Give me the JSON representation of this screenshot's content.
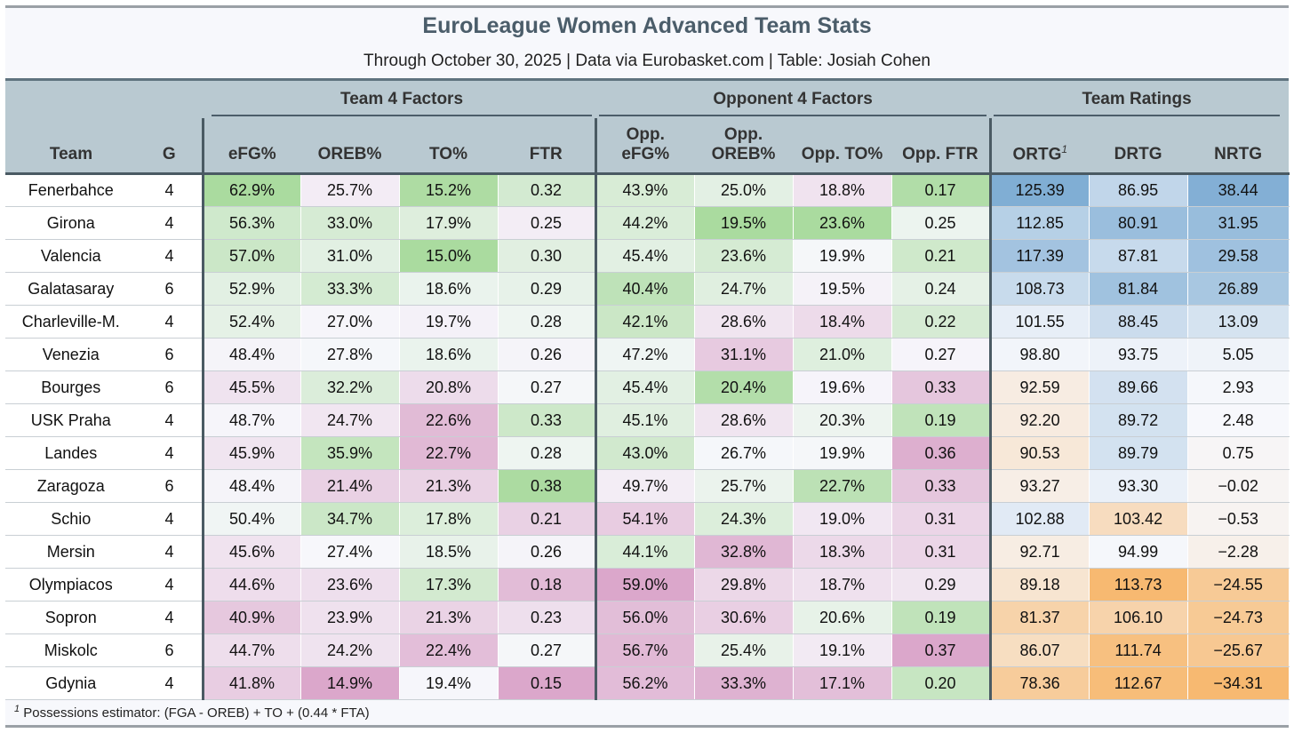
{
  "title": "EuroLeague Women Advanced Team Stats",
  "subtitle": "Through October 30, 2025 | Data via Eurobasket.com | Table: Josiah Cohen",
  "groups": {
    "team4": "Team 4 Factors",
    "opp4": "Opponent 4 Factors",
    "ratings": "Team Ratings"
  },
  "columns": {
    "team": "Team",
    "g": "G",
    "efg": "eFG%",
    "oreb": "OREB%",
    "to": "TO%",
    "ftr": "FTR",
    "opp_efg_1": "Opp.",
    "opp_efg_2": "eFG%",
    "opp_oreb_1": "Opp.",
    "opp_oreb_2": "OREB%",
    "opp_to": "Opp. TO%",
    "opp_ftr": "Opp. FTR",
    "ortg": "ORTG",
    "ortg_note": "1",
    "drtg": "DRTG",
    "nrtg": "NRTG"
  },
  "rows": [
    {
      "team": "Fenerbahce",
      "g": "4",
      "efg": "62.9%",
      "oreb": "25.7%",
      "to": "15.2%",
      "ftr": "0.32",
      "opp_efg": "43.9%",
      "opp_oreb": "25.0%",
      "opp_to": "18.8%",
      "opp_ftr": "0.17",
      "ortg": "125.39",
      "drtg": "86.95",
      "nrtg": "38.44"
    },
    {
      "team": "Girona",
      "g": "4",
      "efg": "56.3%",
      "oreb": "33.0%",
      "to": "17.9%",
      "ftr": "0.25",
      "opp_efg": "44.2%",
      "opp_oreb": "19.5%",
      "opp_to": "23.6%",
      "opp_ftr": "0.25",
      "ortg": "112.85",
      "drtg": "80.91",
      "nrtg": "31.95"
    },
    {
      "team": "Valencia",
      "g": "4",
      "efg": "57.0%",
      "oreb": "31.0%",
      "to": "15.0%",
      "ftr": "0.30",
      "opp_efg": "45.4%",
      "opp_oreb": "23.6%",
      "opp_to": "19.9%",
      "opp_ftr": "0.21",
      "ortg": "117.39",
      "drtg": "87.81",
      "nrtg": "29.58"
    },
    {
      "team": "Galatasaray",
      "g": "6",
      "efg": "52.9%",
      "oreb": "33.3%",
      "to": "18.6%",
      "ftr": "0.29",
      "opp_efg": "40.4%",
      "opp_oreb": "24.7%",
      "opp_to": "19.5%",
      "opp_ftr": "0.24",
      "ortg": "108.73",
      "drtg": "81.84",
      "nrtg": "26.89"
    },
    {
      "team": "Charleville-M.",
      "g": "4",
      "efg": "52.4%",
      "oreb": "27.0%",
      "to": "19.7%",
      "ftr": "0.28",
      "opp_efg": "42.1%",
      "opp_oreb": "28.6%",
      "opp_to": "18.4%",
      "opp_ftr": "0.22",
      "ortg": "101.55",
      "drtg": "88.45",
      "nrtg": "13.09"
    },
    {
      "team": "Venezia",
      "g": "6",
      "efg": "48.4%",
      "oreb": "27.8%",
      "to": "18.6%",
      "ftr": "0.26",
      "opp_efg": "47.2%",
      "opp_oreb": "31.1%",
      "opp_to": "21.0%",
      "opp_ftr": "0.27",
      "ortg": "98.80",
      "drtg": "93.75",
      "nrtg": "5.05"
    },
    {
      "team": "Bourges",
      "g": "6",
      "efg": "45.5%",
      "oreb": "32.2%",
      "to": "20.8%",
      "ftr": "0.27",
      "opp_efg": "45.4%",
      "opp_oreb": "20.4%",
      "opp_to": "19.6%",
      "opp_ftr": "0.33",
      "ortg": "92.59",
      "drtg": "89.66",
      "nrtg": "2.93"
    },
    {
      "team": "USK Praha",
      "g": "4",
      "efg": "48.7%",
      "oreb": "24.7%",
      "to": "22.6%",
      "ftr": "0.33",
      "opp_efg": "45.1%",
      "opp_oreb": "28.6%",
      "opp_to": "20.3%",
      "opp_ftr": "0.19",
      "ortg": "92.20",
      "drtg": "89.72",
      "nrtg": "2.48"
    },
    {
      "team": "Landes",
      "g": "4",
      "efg": "45.9%",
      "oreb": "35.9%",
      "to": "22.7%",
      "ftr": "0.28",
      "opp_efg": "43.0%",
      "opp_oreb": "26.7%",
      "opp_to": "19.9%",
      "opp_ftr": "0.36",
      "ortg": "90.53",
      "drtg": "89.79",
      "nrtg": "0.75"
    },
    {
      "team": "Zaragoza",
      "g": "6",
      "efg": "48.4%",
      "oreb": "21.4%",
      "to": "21.3%",
      "ftr": "0.38",
      "opp_efg": "49.7%",
      "opp_oreb": "25.7%",
      "opp_to": "22.7%",
      "opp_ftr": "0.33",
      "ortg": "93.27",
      "drtg": "93.30",
      "nrtg": "−0.02"
    },
    {
      "team": "Schio",
      "g": "4",
      "efg": "50.4%",
      "oreb": "34.7%",
      "to": "17.8%",
      "ftr": "0.21",
      "opp_efg": "54.1%",
      "opp_oreb": "24.3%",
      "opp_to": "19.0%",
      "opp_ftr": "0.31",
      "ortg": "102.88",
      "drtg": "103.42",
      "nrtg": "−0.53"
    },
    {
      "team": "Mersin",
      "g": "4",
      "efg": "45.6%",
      "oreb": "27.4%",
      "to": "18.5%",
      "ftr": "0.26",
      "opp_efg": "44.1%",
      "opp_oreb": "32.8%",
      "opp_to": "18.3%",
      "opp_ftr": "0.31",
      "ortg": "92.71",
      "drtg": "94.99",
      "nrtg": "−2.28"
    },
    {
      "team": "Olympiacos",
      "g": "4",
      "efg": "44.6%",
      "oreb": "23.6%",
      "to": "17.3%",
      "ftr": "0.18",
      "opp_efg": "59.0%",
      "opp_oreb": "29.8%",
      "opp_to": "18.7%",
      "opp_ftr": "0.29",
      "ortg": "89.18",
      "drtg": "113.73",
      "nrtg": "−24.55"
    },
    {
      "team": "Sopron",
      "g": "4",
      "efg": "40.9%",
      "oreb": "23.9%",
      "to": "21.3%",
      "ftr": "0.23",
      "opp_efg": "56.0%",
      "opp_oreb": "30.6%",
      "opp_to": "20.6%",
      "opp_ftr": "0.19",
      "ortg": "81.37",
      "drtg": "106.10",
      "nrtg": "−24.73"
    },
    {
      "team": "Miskolc",
      "g": "6",
      "efg": "44.7%",
      "oreb": "24.2%",
      "to": "22.4%",
      "ftr": "0.27",
      "opp_efg": "56.7%",
      "opp_oreb": "25.4%",
      "opp_to": "19.1%",
      "opp_ftr": "0.37",
      "ortg": "86.07",
      "drtg": "111.74",
      "nrtg": "−25.67"
    },
    {
      "team": "Gdynia",
      "g": "4",
      "efg": "41.8%",
      "oreb": "14.9%",
      "to": "19.4%",
      "ftr": "0.15",
      "opp_efg": "56.2%",
      "opp_oreb": "33.3%",
      "opp_to": "17.1%",
      "opp_ftr": "0.20",
      "ortg": "78.36",
      "drtg": "112.67",
      "nrtg": "−34.31"
    }
  ],
  "footnote": {
    "mark": "1",
    "text": "Possessions estimator: (FGA - OREB) + TO + (0.44 * FTA)"
  },
  "colors": {
    "header_bg": "#b9c9d1",
    "title": "#4b5d6a",
    "good_green": "#a6d99a",
    "bad_purple": "#d9a3c8",
    "neutral": "#f7f8fc",
    "rating_blue": "#7aaad2",
    "rating_orange": "#f7b66a"
  }
}
